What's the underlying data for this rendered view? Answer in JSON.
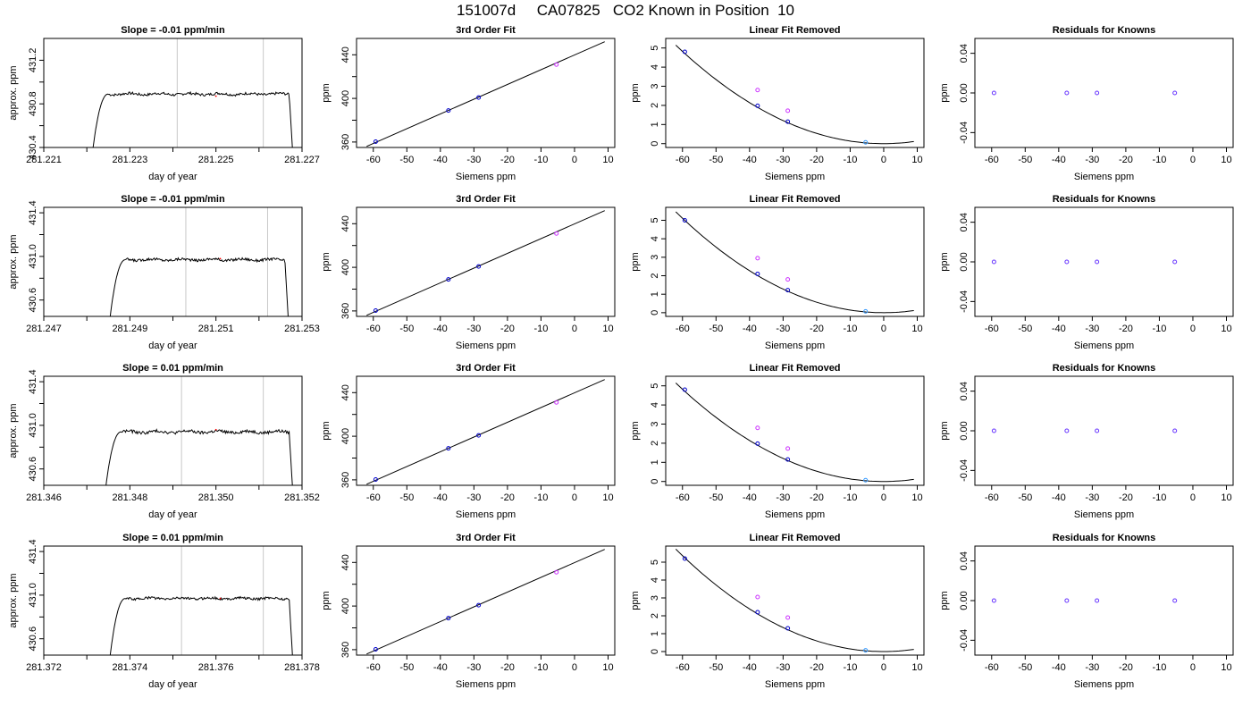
{
  "figure_title": "151007d     CA07825   CO2 Known in Position  10",
  "colors": {
    "axis": "#000000",
    "line": "#000000",
    "vline": "#c8c8c8",
    "known_blue": "#0000cc",
    "magenta": "#cc33ff",
    "cyan": "#3399ff",
    "residual": "#6633ff"
  },
  "chart_data": [
    {
      "row": 1,
      "col": 1,
      "type": "line",
      "title": "Slope =  -0.01  ppm/min",
      "xlabel": "day of year",
      "ylabel": "approx. ppm",
      "xlim": [
        281.221,
        281.227
      ],
      "ylim": [
        430.4,
        431.4
      ],
      "xticks": [
        281.221,
        281.222,
        281.223,
        281.224,
        281.225,
        281.226,
        281.227
      ],
      "xtick_labels": [
        "281.221",
        "",
        "281.223",
        "",
        "281.225",
        "",
        "281.227"
      ],
      "yticks": [
        430.4,
        430.6,
        430.8,
        431.0,
        431.2
      ],
      "ytick_labels": [
        "430.4",
        "",
        "430.8",
        "",
        "431.2"
      ],
      "vlines": [
        281.2241,
        281.2261
      ],
      "marker": {
        "x": 281.225,
        "y": 430.87
      },
      "trace": {
        "rise_start": 281.2221,
        "plateau_start": 281.2225,
        "plateau_end": 281.2267,
        "fall_end": 281.2268,
        "base": 430.25,
        "plateau": 430.89,
        "noise": 0.012
      }
    },
    {
      "row": 1,
      "col": 2,
      "type": "scatter",
      "title": "3rd Order Fit",
      "xlabel": "Siemens ppm",
      "ylabel": "ppm",
      "xlim": [
        -65,
        12
      ],
      "ylim": [
        355,
        455
      ],
      "xticks": [
        -60,
        -50,
        -40,
        -30,
        -20,
        -10,
        0,
        10
      ],
      "xtick_labels": [
        "-60",
        "-50",
        "-40",
        "-30",
        "-20",
        "-10",
        "0",
        "10"
      ],
      "yticks": [
        360,
        380,
        400,
        420,
        440
      ],
      "ytick_labels": [
        "360",
        "",
        "400",
        "",
        "440"
      ],
      "curve": {
        "x0": -62,
        "x1": 9,
        "y0": 356,
        "y1": 452
      },
      "points": [
        {
          "x": -59.3,
          "y": 360.3,
          "color": "known_blue"
        },
        {
          "x": -37.6,
          "y": 388.9,
          "color": "known_blue"
        },
        {
          "x": -28.6,
          "y": 400.8,
          "color": "known_blue"
        },
        {
          "x": -5.4,
          "y": 431.0,
          "color": "magenta"
        }
      ]
    },
    {
      "row": 1,
      "col": 3,
      "type": "scatter",
      "title": "Linear Fit Removed",
      "xlabel": "Siemens ppm",
      "ylabel": "ppm",
      "xlim": [
        -65,
        12
      ],
      "ylim": [
        -0.2,
        5.5
      ],
      "xticks": [
        -60,
        -50,
        -40,
        -30,
        -20,
        -10,
        0,
        10
      ],
      "xtick_labels": [
        "-60",
        "-50",
        "-40",
        "-30",
        "-20",
        "-10",
        "0",
        "10"
      ],
      "yticks": [
        0,
        1,
        2,
        3,
        4,
        5
      ],
      "ytick_labels": [
        "0",
        "1",
        "2",
        "3",
        "4",
        "5"
      ],
      "curve": {
        "a": 0.00134,
        "h": 0,
        "k": 0,
        "x0": -62,
        "x1": 9
      },
      "points": [
        {
          "x": -59.3,
          "y": 4.8,
          "color": "known_blue"
        },
        {
          "x": -37.6,
          "y": 1.98,
          "color": "known_blue"
        },
        {
          "x": -37.6,
          "y": 2.8,
          "color": "magenta"
        },
        {
          "x": -28.6,
          "y": 1.15,
          "color": "known_blue"
        },
        {
          "x": -28.6,
          "y": 1.72,
          "color": "magenta"
        },
        {
          "x": -5.4,
          "y": 0.07,
          "color": "cyan"
        }
      ]
    },
    {
      "row": 1,
      "col": 4,
      "type": "scatter",
      "title": "Residuals for Knowns",
      "xlabel": "Siemens ppm",
      "ylabel": "ppm",
      "xlim": [
        -65,
        12
      ],
      "ylim": [
        -0.055,
        0.055
      ],
      "xticks": [
        -60,
        -50,
        -40,
        -30,
        -20,
        -10,
        0,
        10
      ],
      "xtick_labels": [
        "-60",
        "-50",
        "-40",
        "-30",
        "-20",
        "-10",
        "0",
        "10"
      ],
      "yticks": [
        -0.04,
        0.0,
        0.04
      ],
      "ytick_labels": [
        "-0.04",
        "0.00",
        "0.04"
      ],
      "points": [
        {
          "x": -59.3,
          "y": 0.0,
          "color": "residual"
        },
        {
          "x": -37.6,
          "y": 0.0,
          "color": "residual"
        },
        {
          "x": -28.6,
          "y": 0.0,
          "color": "residual"
        },
        {
          "x": -5.4,
          "y": 0.0,
          "color": "residual"
        }
      ]
    },
    {
      "row": 2,
      "col": 1,
      "type": "line",
      "title": "Slope =  -0.01  ppm/min",
      "xlabel": "day of year",
      "ylabel": "approx. ppm",
      "xlim": [
        281.247,
        281.253
      ],
      "ylim": [
        430.45,
        431.45
      ],
      "xticks": [
        281.247,
        281.248,
        281.249,
        281.25,
        281.251,
        281.252,
        281.253
      ],
      "xtick_labels": [
        "281.247",
        "",
        "281.249",
        "",
        "281.251",
        "",
        "281.253"
      ],
      "yticks": [
        430.6,
        430.8,
        431.0,
        431.2,
        431.4
      ],
      "ytick_labels": [
        "430.6",
        "",
        "431.0",
        "",
        "431.4"
      ],
      "vlines": [
        281.2503,
        281.2522
      ],
      "marker": {
        "x": 281.2511,
        "y": 430.98
      },
      "trace": {
        "rise_start": 281.2485,
        "plateau_start": 281.2489,
        "plateau_end": 281.2526,
        "fall_end": 281.2527,
        "base": 430.3,
        "plateau": 430.97,
        "noise": 0.012
      }
    },
    {
      "row": 2,
      "col": 2,
      "type": "scatter",
      "title": "3rd Order Fit",
      "xlabel": "Siemens ppm",
      "ylabel": "ppm",
      "xlim": [
        -65,
        12
      ],
      "ylim": [
        355,
        455
      ],
      "xticks": [
        -60,
        -50,
        -40,
        -30,
        -20,
        -10,
        0,
        10
      ],
      "xtick_labels": [
        "-60",
        "-50",
        "-40",
        "-30",
        "-20",
        "-10",
        "0",
        "10"
      ],
      "yticks": [
        360,
        380,
        400,
        420,
        440
      ],
      "ytick_labels": [
        "360",
        "",
        "400",
        "",
        "440"
      ],
      "curve": {
        "x0": -62,
        "x1": 9,
        "y0": 356,
        "y1": 452
      },
      "points": [
        {
          "x": -59.3,
          "y": 360.3,
          "color": "known_blue"
        },
        {
          "x": -37.6,
          "y": 388.9,
          "color": "known_blue"
        },
        {
          "x": -28.6,
          "y": 400.8,
          "color": "known_blue"
        },
        {
          "x": -5.4,
          "y": 431.0,
          "color": "magenta"
        }
      ]
    },
    {
      "row": 2,
      "col": 3,
      "type": "scatter",
      "title": "Linear Fit Removed",
      "xlabel": "Siemens ppm",
      "ylabel": "ppm",
      "xlim": [
        -65,
        12
      ],
      "ylim": [
        -0.2,
        5.7
      ],
      "xticks": [
        -60,
        -50,
        -40,
        -30,
        -20,
        -10,
        0,
        10
      ],
      "xtick_labels": [
        "-60",
        "-50",
        "-40",
        "-30",
        "-20",
        "-10",
        "0",
        "10"
      ],
      "yticks": [
        0,
        1,
        2,
        3,
        4,
        5
      ],
      "ytick_labels": [
        "0",
        "1",
        "2",
        "3",
        "4",
        "5"
      ],
      "curve": {
        "a": 0.00142,
        "h": 0,
        "k": 0,
        "x0": -62,
        "x1": 9
      },
      "points": [
        {
          "x": -59.3,
          "y": 5.0,
          "color": "known_blue"
        },
        {
          "x": -37.6,
          "y": 2.1,
          "color": "known_blue"
        },
        {
          "x": -37.6,
          "y": 2.95,
          "color": "magenta"
        },
        {
          "x": -28.6,
          "y": 1.22,
          "color": "known_blue"
        },
        {
          "x": -28.6,
          "y": 1.8,
          "color": "magenta"
        },
        {
          "x": -5.4,
          "y": 0.07,
          "color": "cyan"
        }
      ]
    },
    {
      "row": 2,
      "col": 4,
      "type": "scatter",
      "title": "Residuals for Knowns",
      "xlabel": "Siemens ppm",
      "ylabel": "ppm",
      "xlim": [
        -65,
        12
      ],
      "ylim": [
        -0.055,
        0.055
      ],
      "xticks": [
        -60,
        -50,
        -40,
        -30,
        -20,
        -10,
        0,
        10
      ],
      "xtick_labels": [
        "-60",
        "-50",
        "-40",
        "-30",
        "-20",
        "-10",
        "0",
        "10"
      ],
      "yticks": [
        -0.04,
        0.0,
        0.04
      ],
      "ytick_labels": [
        "-0.04",
        "0.00",
        "0.04"
      ],
      "points": [
        {
          "x": -59.3,
          "y": 0.0,
          "color": "residual"
        },
        {
          "x": -37.6,
          "y": 0.0,
          "color": "residual"
        },
        {
          "x": -28.6,
          "y": 0.0,
          "color": "residual"
        },
        {
          "x": -5.4,
          "y": 0.0,
          "color": "residual"
        }
      ]
    },
    {
      "row": 3,
      "col": 1,
      "type": "line",
      "title": "Slope =  0.01  ppm/min",
      "xlabel": "day of year",
      "ylabel": "approx. ppm",
      "xlim": [
        281.346,
        281.352
      ],
      "ylim": [
        430.45,
        431.45
      ],
      "xticks": [
        281.346,
        281.347,
        281.348,
        281.349,
        281.35,
        281.351,
        281.352
      ],
      "xtick_labels": [
        "281.346",
        "",
        "281.348",
        "",
        "281.350",
        "",
        "281.352"
      ],
      "yticks": [
        430.6,
        430.8,
        431.0,
        431.2,
        431.4
      ],
      "ytick_labels": [
        "430.6",
        "",
        "431.0",
        "",
        "431.4"
      ],
      "vlines": [
        281.3492,
        281.3511
      ],
      "marker": {
        "x": 281.35,
        "y": 430.96
      },
      "trace": {
        "rise_start": 281.3474,
        "plateau_start": 281.3478,
        "plateau_end": 281.3517,
        "fall_end": 281.3518,
        "base": 430.3,
        "plateau": 430.94,
        "noise": 0.014
      }
    },
    {
      "row": 3,
      "col": 2,
      "type": "scatter",
      "title": "3rd Order Fit",
      "xlabel": "Siemens ppm",
      "ylabel": "ppm",
      "xlim": [
        -65,
        12
      ],
      "ylim": [
        355,
        455
      ],
      "xticks": [
        -60,
        -50,
        -40,
        -30,
        -20,
        -10,
        0,
        10
      ],
      "xtick_labels": [
        "-60",
        "-50",
        "-40",
        "-30",
        "-20",
        "-10",
        "0",
        "10"
      ],
      "yticks": [
        360,
        380,
        400,
        420,
        440
      ],
      "ytick_labels": [
        "360",
        "",
        "400",
        "",
        "440"
      ],
      "curve": {
        "x0": -62,
        "x1": 9,
        "y0": 356,
        "y1": 452
      },
      "points": [
        {
          "x": -59.3,
          "y": 360.3,
          "color": "known_blue"
        },
        {
          "x": -37.6,
          "y": 388.9,
          "color": "known_blue"
        },
        {
          "x": -28.6,
          "y": 400.8,
          "color": "known_blue"
        },
        {
          "x": -5.4,
          "y": 431.0,
          "color": "magenta"
        }
      ]
    },
    {
      "row": 3,
      "col": 3,
      "type": "scatter",
      "title": "Linear Fit Removed",
      "xlabel": "Siemens ppm",
      "ylabel": "ppm",
      "xlim": [
        -65,
        12
      ],
      "ylim": [
        -0.2,
        5.5
      ],
      "xticks": [
        -60,
        -50,
        -40,
        -30,
        -20,
        -10,
        0,
        10
      ],
      "xtick_labels": [
        "-60",
        "-50",
        "-40",
        "-30",
        "-20",
        "-10",
        "0",
        "10"
      ],
      "yticks": [
        0,
        1,
        2,
        3,
        4,
        5
      ],
      "ytick_labels": [
        "0",
        "1",
        "2",
        "3",
        "4",
        "5"
      ],
      "curve": {
        "a": 0.00134,
        "h": 0,
        "k": 0,
        "x0": -62,
        "x1": 9
      },
      "points": [
        {
          "x": -59.3,
          "y": 4.8,
          "color": "known_blue"
        },
        {
          "x": -37.6,
          "y": 1.98,
          "color": "known_blue"
        },
        {
          "x": -37.6,
          "y": 2.8,
          "color": "magenta"
        },
        {
          "x": -28.6,
          "y": 1.15,
          "color": "known_blue"
        },
        {
          "x": -28.6,
          "y": 1.72,
          "color": "magenta"
        },
        {
          "x": -5.4,
          "y": 0.07,
          "color": "cyan"
        }
      ]
    },
    {
      "row": 3,
      "col": 4,
      "type": "scatter",
      "title": "Residuals for Knowns",
      "xlabel": "Siemens ppm",
      "ylabel": "ppm",
      "xlim": [
        -65,
        12
      ],
      "ylim": [
        -0.055,
        0.055
      ],
      "xticks": [
        -60,
        -50,
        -40,
        -30,
        -20,
        -10,
        0,
        10
      ],
      "xtick_labels": [
        "-60",
        "-50",
        "-40",
        "-30",
        "-20",
        "-10",
        "0",
        "10"
      ],
      "yticks": [
        -0.04,
        0.0,
        0.04
      ],
      "ytick_labels": [
        "-0.04",
        "0.00",
        "0.04"
      ],
      "points": [
        {
          "x": -59.3,
          "y": 0.0,
          "color": "residual"
        },
        {
          "x": -37.6,
          "y": 0.0,
          "color": "residual"
        },
        {
          "x": -28.6,
          "y": 0.0,
          "color": "residual"
        },
        {
          "x": -5.4,
          "y": 0.0,
          "color": "residual"
        }
      ]
    },
    {
      "row": 4,
      "col": 1,
      "type": "line",
      "title": "Slope =  0.01  ppm/min",
      "xlabel": "day of year",
      "ylabel": "approx. ppm",
      "xlim": [
        281.372,
        281.378
      ],
      "ylim": [
        430.45,
        431.45
      ],
      "xticks": [
        281.372,
        281.373,
        281.374,
        281.375,
        281.376,
        281.377,
        281.378
      ],
      "xtick_labels": [
        "281.372",
        "",
        "281.374",
        "",
        "281.376",
        "",
        "281.378"
      ],
      "yticks": [
        430.6,
        430.8,
        431.0,
        431.2,
        431.4
      ],
      "ytick_labels": [
        "430.6",
        "",
        "431.0",
        "",
        "431.4"
      ],
      "vlines": [
        281.3752,
        281.3771
      ],
      "marker": {
        "x": 281.3761,
        "y": 430.97
      },
      "trace": {
        "rise_start": 281.3735,
        "plateau_start": 281.3739,
        "plateau_end": 281.3777,
        "fall_end": 281.3778,
        "base": 430.3,
        "plateau": 430.97,
        "noise": 0.011
      }
    },
    {
      "row": 4,
      "col": 2,
      "type": "scatter",
      "title": "3rd Order Fit",
      "xlabel": "Siemens ppm",
      "ylabel": "ppm",
      "xlim": [
        -65,
        12
      ],
      "ylim": [
        355,
        455
      ],
      "xticks": [
        -60,
        -50,
        -40,
        -30,
        -20,
        -10,
        0,
        10
      ],
      "xtick_labels": [
        "-60",
        "-50",
        "-40",
        "-30",
        "-20",
        "-10",
        "0",
        "10"
      ],
      "yticks": [
        360,
        380,
        400,
        420,
        440
      ],
      "ytick_labels": [
        "360",
        "",
        "400",
        "",
        "440"
      ],
      "curve": {
        "x0": -62,
        "x1": 9,
        "y0": 356,
        "y1": 452
      },
      "points": [
        {
          "x": -59.3,
          "y": 360.3,
          "color": "known_blue"
        },
        {
          "x": -37.6,
          "y": 388.9,
          "color": "known_blue"
        },
        {
          "x": -28.6,
          "y": 400.8,
          "color": "known_blue"
        },
        {
          "x": -5.4,
          "y": 431.0,
          "color": "magenta"
        }
      ]
    },
    {
      "row": 4,
      "col": 3,
      "type": "scatter",
      "title": "Linear Fit Removed",
      "xlabel": "Siemens ppm",
      "ylabel": "ppm",
      "xlim": [
        -65,
        12
      ],
      "ylim": [
        -0.2,
        5.9
      ],
      "xticks": [
        -60,
        -50,
        -40,
        -30,
        -20,
        -10,
        0,
        10
      ],
      "xtick_labels": [
        "-60",
        "-50",
        "-40",
        "-30",
        "-20",
        "-10",
        "0",
        "10"
      ],
      "yticks": [
        0,
        1,
        2,
        3,
        4,
        5
      ],
      "ytick_labels": [
        "0",
        "1",
        "2",
        "3",
        "4",
        "5"
      ],
      "curve": {
        "a": 0.00149,
        "h": 0,
        "k": 0,
        "x0": -62,
        "x1": 9
      },
      "points": [
        {
          "x": -59.3,
          "y": 5.2,
          "color": "known_blue"
        },
        {
          "x": -37.6,
          "y": 2.2,
          "color": "known_blue"
        },
        {
          "x": -37.6,
          "y": 3.05,
          "color": "magenta"
        },
        {
          "x": -28.6,
          "y": 1.3,
          "color": "known_blue"
        },
        {
          "x": -28.6,
          "y": 1.9,
          "color": "magenta"
        },
        {
          "x": -5.4,
          "y": 0.07,
          "color": "cyan"
        }
      ]
    },
    {
      "row": 4,
      "col": 4,
      "type": "scatter",
      "title": "Residuals for Knowns",
      "xlabel": "Siemens ppm",
      "ylabel": "ppm",
      "xlim": [
        -65,
        12
      ],
      "ylim": [
        -0.055,
        0.055
      ],
      "xticks": [
        -60,
        -50,
        -40,
        -30,
        -20,
        -10,
        0,
        10
      ],
      "xtick_labels": [
        "-60",
        "-50",
        "-40",
        "-30",
        "-20",
        "-10",
        "0",
        "10"
      ],
      "yticks": [
        -0.04,
        0.0,
        0.04
      ],
      "ytick_labels": [
        "-0.04",
        "0.00",
        "0.04"
      ],
      "points": [
        {
          "x": -59.3,
          "y": 0.0,
          "color": "residual"
        },
        {
          "x": -37.6,
          "y": 0.0,
          "color": "residual"
        },
        {
          "x": -28.6,
          "y": 0.0,
          "color": "residual"
        },
        {
          "x": -5.4,
          "y": 0.0,
          "color": "residual"
        }
      ]
    }
  ]
}
